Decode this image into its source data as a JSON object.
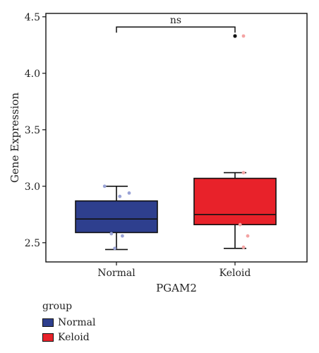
{
  "chart_data": {
    "type": "boxplot",
    "title": "",
    "xlabel": "PGAM2",
    "ylabel": "Gene Expression",
    "ylim": [
      2.33,
      4.53
    ],
    "yticks": [
      "2.5",
      "3.0",
      "3.5",
      "4.0",
      "4.5"
    ],
    "ytick_values": [
      2.5,
      3.0,
      3.5,
      4.0,
      4.5
    ],
    "categories": [
      "Normal",
      "Keloid"
    ],
    "grid": false,
    "legend": {
      "title": "group",
      "placement": "bottom-left",
      "entries": [
        "Normal",
        "Keloid"
      ]
    },
    "boxes": [
      {
        "name": "Normal",
        "color": "#2E3F8E",
        "point_color": "#9AA3D6",
        "min": 2.44,
        "q1": 2.59,
        "median": 2.71,
        "q3": 2.87,
        "max": 3.0,
        "outliers": [],
        "points": [
          {
            "x_jitter": -0.28,
            "y": 3.0
          },
          {
            "x_jitter": 0.08,
            "y": 2.91
          },
          {
            "x_jitter": 0.3,
            "y": 2.94
          },
          {
            "x_jitter": -0.12,
            "y": 2.58
          },
          {
            "x_jitter": 0.14,
            "y": 2.56
          },
          {
            "x_jitter": -0.04,
            "y": 2.45
          }
        ]
      },
      {
        "name": "Keloid",
        "color": "#E8222A",
        "point_color": "#F4A3A3",
        "min": 2.45,
        "q1": 2.66,
        "median": 2.75,
        "q3": 3.07,
        "max": 3.12,
        "outliers": [
          4.33
        ],
        "points": [
          {
            "x_jitter": 0.2,
            "y": 4.33
          },
          {
            "x_jitter": 0.2,
            "y": 3.12
          },
          {
            "x_jitter": 0.12,
            "y": 2.66
          },
          {
            "x_jitter": 0.3,
            "y": 2.56
          },
          {
            "x_jitter": 0.2,
            "y": 2.46
          }
        ]
      }
    ],
    "annotations": [
      {
        "text": "ns",
        "type": "significance-bracket",
        "between": [
          "Normal",
          "Keloid"
        ],
        "y": 4.41
      }
    ]
  }
}
